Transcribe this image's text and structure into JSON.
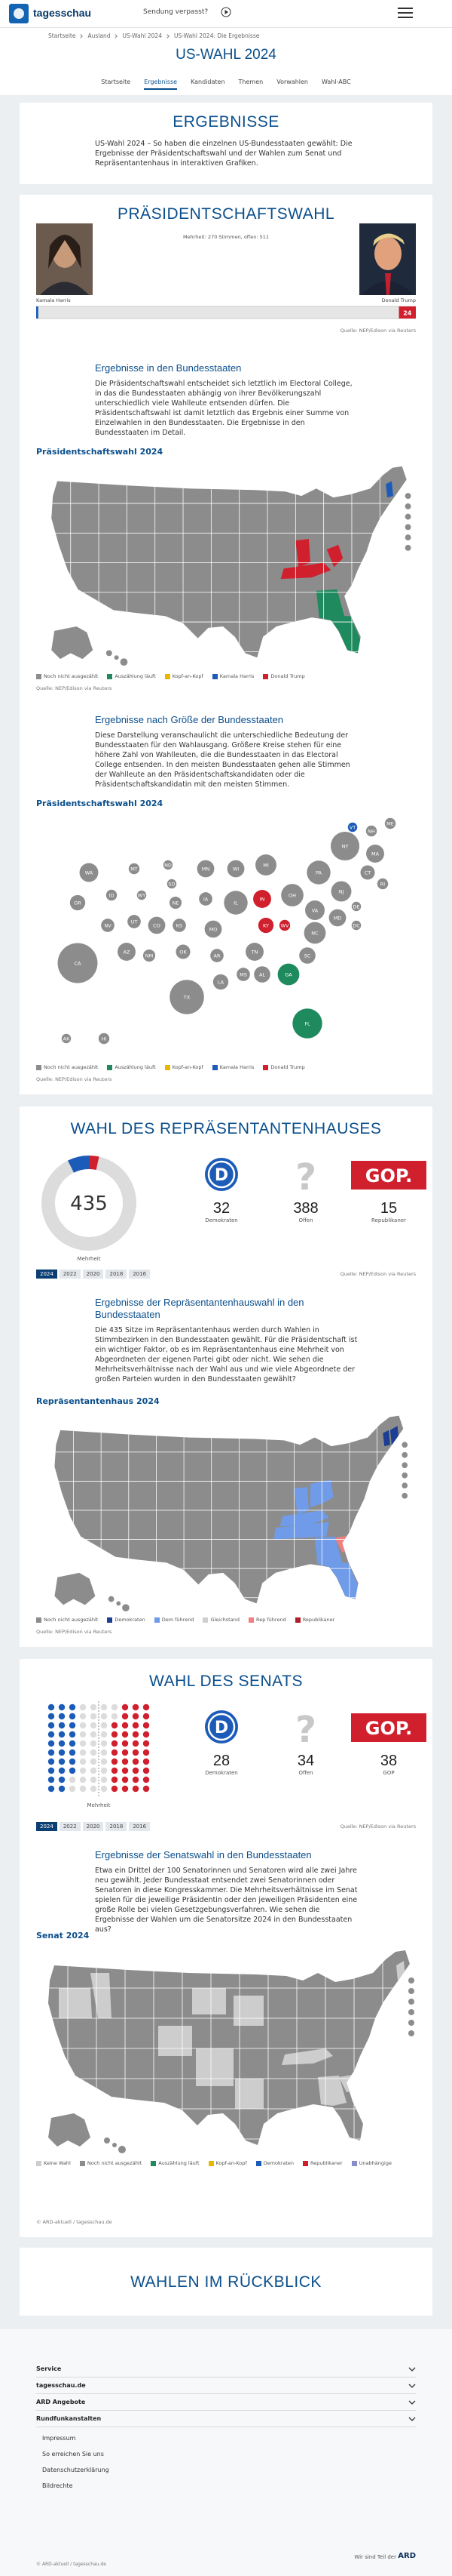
{
  "header": {
    "logo": "tagesschau",
    "missed": "Sendung verpasst?"
  },
  "breadcrumb": [
    "Startseite",
    "Ausland",
    "US-Wahl 2024",
    "US-Wahl 2024: Die Ergebnisse"
  ],
  "title": "US-WAHL 2024",
  "tabs": [
    "Startseite",
    "Ergebnisse",
    "Kandidaten",
    "Themen",
    "Vorwahlen",
    "Wahl-ABC"
  ],
  "intro": {
    "title": "ERGEBNISSE",
    "text": "US-Wahl 2024 – So haben die einzelnen US-Bundesstaaten gewählt: Die Ergebnisse der Präsidentschaftswahl und der Wahlen zum Senat und Repräsentantenhaus in interaktiven Grafiken."
  },
  "logos": {
    "dem": "D",
    "open": "?",
    "rep": "GOP."
  },
  "president": {
    "title": "PRÄSIDENTSCHAFTSWAHL",
    "majority_note": "Mehrheit: 270 Stimmen, offen: 511",
    "bar_lim": [
      0,
      538
    ],
    "candidates": [
      {
        "name": "Kamala Harris",
        "electors": 3,
        "color": "#1c5cb8"
      },
      {
        "name": "Donald Trump",
        "electors": 24,
        "color": "#d0202e"
      }
    ],
    "source": "Quelle: NEP/Edison via Reuters",
    "states_section": {
      "title": "Ergebnisse in den Bundesstaaten",
      "text": "Die Präsidentschaftswahl entscheidet sich letztlich im Electoral College, in das die Bundesstaaten abhängig von ihrer Bevölkerungszahl unterschiedlich viele Wahlleute entsenden dürfen. Die Präsidentschaftswahl ist damit letztlich das Ergebnis einer Summe von Einzelwahlen in den Bundesstaaten. Die Ergebnisse in den Bundesstaaten im Detail."
    },
    "map_title": "Präsidentschaftswahl 2024",
    "legend": [
      {
        "label": "Noch nicht ausgezählt",
        "color": "#8c8c8c"
      },
      {
        "label": "Auszählung läuft",
        "color": "#1e8a5e"
      },
      {
        "label": "Kopf-an-Kopf",
        "color": "#e6b800"
      },
      {
        "label": "Kamala Harris",
        "color": "#1c5cb8"
      },
      {
        "label": "Donald Trump",
        "color": "#d0202e"
      }
    ],
    "size_section": {
      "title": "Ergebnisse nach Größe der Bundesstaaten",
      "text": "Diese Darstellung veranschaulicht die unterschiedliche Bedeutung der Bundesstaaten für den Wahlausgang. Größere Kreise stehen für eine höhere Zahl von Wahlleuten, die die Bundesstaaten in das Electoral College entsenden. In den meisten Bundesstaaten gehen alle Stimmen der Wahlleute an den Präsidentschaftskandidaten oder die Präsidentschaftskandidatin mit den meisten Stimmen."
    },
    "bubble_title": "Präsidentschaftswahl 2024",
    "bubbles": [
      {
        "label": "WA",
        "value": 12,
        "status": 0
      },
      {
        "label": "OR",
        "value": 8,
        "status": 0
      },
      {
        "label": "CA",
        "value": 54,
        "status": 0
      },
      {
        "label": "NV",
        "value": 6,
        "status": 0
      },
      {
        "label": "ID",
        "value": 4,
        "status": 0
      },
      {
        "label": "MT",
        "value": 4,
        "status": 0
      },
      {
        "label": "WY",
        "value": 3,
        "status": 0
      },
      {
        "label": "UT",
        "value": 6,
        "status": 0
      },
      {
        "label": "AZ",
        "value": 11,
        "status": 0
      },
      {
        "label": "CO",
        "value": 10,
        "status": 0
      },
      {
        "label": "NM",
        "value": 5,
        "status": 0
      },
      {
        "label": "ND",
        "value": 3,
        "status": 0
      },
      {
        "label": "SD",
        "value": 3,
        "status": 0
      },
      {
        "label": "NE",
        "value": 5,
        "status": 0
      },
      {
        "label": "KS",
        "value": 6,
        "status": 0
      },
      {
        "label": "OK",
        "value": 7,
        "status": 0
      },
      {
        "label": "TX",
        "value": 40,
        "status": 0
      },
      {
        "label": "MN",
        "value": 10,
        "status": 0
      },
      {
        "label": "IA",
        "value": 6,
        "status": 0
      },
      {
        "label": "MO",
        "value": 10,
        "status": 0
      },
      {
        "label": "AR",
        "value": 6,
        "status": 0
      },
      {
        "label": "LA",
        "value": 8,
        "status": 0
      },
      {
        "label": "WI",
        "value": 10,
        "status": 0
      },
      {
        "label": "IL",
        "value": 19,
        "status": 0
      },
      {
        "label": "MS",
        "value": 6,
        "status": 0
      },
      {
        "label": "AL",
        "value": 9,
        "status": 0
      },
      {
        "label": "MI",
        "value": 15,
        "status": 0
      },
      {
        "label": "IN",
        "value": 11,
        "status": 4
      },
      {
        "label": "KY",
        "value": 8,
        "status": 4
      },
      {
        "label": "TN",
        "value": 11,
        "status": 0
      },
      {
        "label": "OH",
        "value": 17,
        "status": 0
      },
      {
        "label": "WV",
        "value": 4,
        "status": 4
      },
      {
        "label": "GA",
        "value": 16,
        "status": 1
      },
      {
        "label": "FL",
        "value": 30,
        "status": 1
      },
      {
        "label": "SC",
        "value": 9,
        "status": 0
      },
      {
        "label": "NC",
        "value": 16,
        "status": 0
      },
      {
        "label": "VA",
        "value": 13,
        "status": 0
      },
      {
        "label": "PA",
        "value": 19,
        "status": 0
      },
      {
        "label": "NY",
        "value": 28,
        "status": 0
      },
      {
        "label": "NJ",
        "value": 14,
        "status": 0
      },
      {
        "label": "MD",
        "value": 10,
        "status": 0
      },
      {
        "label": "DE",
        "value": 3,
        "status": 0
      },
      {
        "label": "DC",
        "value": 3,
        "status": 0
      },
      {
        "label": "CT",
        "value": 7,
        "status": 0
      },
      {
        "label": "RI",
        "value": 4,
        "status": 0
      },
      {
        "label": "MA",
        "value": 11,
        "status": 0
      },
      {
        "label": "VT",
        "value": 3,
        "status": 3
      },
      {
        "label": "NH",
        "value": 4,
        "status": 0
      },
      {
        "label": "ME",
        "value": 4,
        "status": 0
      },
      {
        "label": "AK",
        "value": 3,
        "status": 0
      },
      {
        "label": "HI",
        "value": 4,
        "status": 0
      }
    ]
  },
  "house": {
    "title": "WAHL DES REPRÄSENTANTENHAUSES",
    "total": 435,
    "majority_label": "Mehrheit",
    "parties": [
      {
        "name": "Demokraten",
        "seats": 32,
        "color": "#1c5cb8"
      },
      {
        "name": "Offen",
        "seats": 388,
        "color": "#dcdcdc"
      },
      {
        "name": "Republikaner",
        "seats": 15,
        "color": "#d0202e"
      }
    ],
    "years": [
      2024,
      2022,
      2020,
      2018,
      2016
    ],
    "source": "Quelle: NEP/Edison via Reuters",
    "section": {
      "title": "Ergebnisse der Repräsentantenhauswahl in den Bundesstaaten",
      "text": "Die 435 Sitze im Repräsentantenhaus werden durch Wahlen in Stimmbezirken in den Bundesstaaten gewählt. Für die Präsidentschaft ist ein wichtiger Faktor, ob es im Repräsentantenhaus eine Mehrheit von Abgeordneten der eigenen Partei gibt oder nicht. Wie sehen die Mehrheitsverhältnisse nach der Wahl aus und wie viele Abgeordnete der großen Parteien wurden in den Bundesstaaten gewählt?"
    },
    "map_title": "Repräsentantenhaus 2024",
    "legend": [
      {
        "label": "Noch nicht ausgezählt",
        "color": "#8c8c8c"
      },
      {
        "label": "Demokraten",
        "color": "#1c3f94"
      },
      {
        "label": "Dem führend",
        "color": "#6f9be8"
      },
      {
        "label": "Gleichstand",
        "color": "#cfcfcf"
      },
      {
        "label": "Rep führend",
        "color": "#f08080"
      },
      {
        "label": "Republikaner",
        "color": "#b01e2a"
      }
    ],
    "map_source": "Quelle: NEP/Edison via Reuters"
  },
  "senate": {
    "title": "WAHL DES SENATS",
    "majority_label": "Mehrheit",
    "parties": [
      {
        "name": "Demokraten",
        "seats": 28,
        "color": "#1c5cb8"
      },
      {
        "name": "Offen",
        "seats": 34,
        "color": "#dcdcdc"
      },
      {
        "name": "GOP",
        "seats": 38,
        "color": "#d0202e"
      }
    ],
    "years": [
      2024,
      2022,
      2020,
      2018,
      2016
    ],
    "source": "Quelle: NEP/Edison via Reuters",
    "section": {
      "title": "Ergebnisse der Senatswahl in den Bundesstaaten",
      "text": "Etwa ein Drittel der 100 Senatorinnen und Senatoren wird alle zwei Jahre neu gewählt. Jeder Bundesstaat entsendet zwei Senatorinnen oder Senatoren in diese Kongresskammer. Die Mehrheitsverhältnisse im Senat spielen für die jeweilige Präsidentin oder den jeweiligen Präsidenten eine große Rolle bei vielen Gesetzgebungsverfahren. Wie sehen die Ergebnisse der Wahlen um die Senatorsitze 2024 in den Bundesstaaten aus?"
    },
    "map_title": "Senat 2024",
    "legend": [
      {
        "label": "Keine Wahl",
        "color": "#cdcdcd"
      },
      {
        "label": "Noch nicht ausgezählt",
        "color": "#8c8c8c"
      },
      {
        "label": "Auszählung läuft",
        "color": "#1e8a5e"
      },
      {
        "label": "Kopf-an-Kopf",
        "color": "#e6b800"
      },
      {
        "label": "Demokraten",
        "color": "#1c5cb8"
      },
      {
        "label": "Republikaner",
        "color": "#d0202e"
      },
      {
        "label": "Unabhängige",
        "color": "#8a8ec8"
      }
    ],
    "map_source": "© ARD-aktuell / tagesschau.de"
  },
  "review": {
    "title": "WAHLEN IM RÜCKBLICK"
  },
  "footer": {
    "sections": [
      "Service",
      "tagesschau.de",
      "ARD Angebote",
      "Rundfunkanstalten"
    ],
    "links": [
      "Impressum",
      "So erreichen Sie uns",
      "Datenschutzerklärung",
      "Bildrechte"
    ],
    "ard_note": "Wir sind Teil der",
    "ard_logo": "ARD",
    "copyright": "© ARD-aktuell / tagesschau.de"
  }
}
